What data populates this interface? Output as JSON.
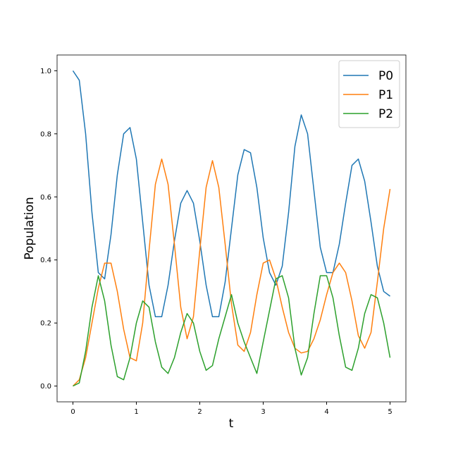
{
  "chart_data": {
    "type": "line",
    "xlabel": "t",
    "ylabel": "Population",
    "x": [
      0,
      0.1,
      0.2,
      0.3,
      0.4,
      0.5,
      0.6,
      0.7,
      0.8,
      0.9,
      1.0,
      1.1,
      1.2,
      1.3,
      1.4,
      1.5,
      1.6,
      1.7,
      1.8,
      1.9,
      2.0,
      2.1,
      2.2,
      2.3,
      2.4,
      2.5,
      2.6,
      2.7,
      2.8,
      2.9,
      3.0,
      3.1,
      3.2,
      3.3,
      3.4,
      3.5,
      3.6,
      3.7,
      3.8,
      3.9,
      4.0,
      4.1,
      4.2,
      4.3,
      4.4,
      4.5,
      4.6,
      4.7,
      4.8,
      4.9,
      5.0
    ],
    "series": [
      {
        "name": "P0",
        "color": "#1f77b4",
        "values": [
          1.0,
          0.97,
          0.8,
          0.55,
          0.36,
          0.34,
          0.48,
          0.67,
          0.8,
          0.82,
          0.72,
          0.52,
          0.32,
          0.22,
          0.22,
          0.32,
          0.46,
          0.58,
          0.62,
          0.58,
          0.46,
          0.32,
          0.22,
          0.22,
          0.33,
          0.5,
          0.67,
          0.75,
          0.74,
          0.63,
          0.47,
          0.36,
          0.32,
          0.38,
          0.55,
          0.76,
          0.86,
          0.8,
          0.62,
          0.44,
          0.36,
          0.36,
          0.45,
          0.58,
          0.7,
          0.72,
          0.65,
          0.52,
          0.38,
          0.3,
          0.285
        ]
      },
      {
        "name": "P1",
        "color": "#ff7f0e",
        "values": [
          0,
          0.02,
          0.09,
          0.2,
          0.31,
          0.39,
          0.39,
          0.3,
          0.18,
          0.09,
          0.08,
          0.2,
          0.43,
          0.64,
          0.72,
          0.64,
          0.45,
          0.25,
          0.15,
          0.22,
          0.43,
          0.63,
          0.715,
          0.63,
          0.45,
          0.26,
          0.13,
          0.11,
          0.17,
          0.29,
          0.39,
          0.4,
          0.34,
          0.25,
          0.17,
          0.12,
          0.105,
          0.11,
          0.15,
          0.21,
          0.29,
          0.36,
          0.39,
          0.36,
          0.27,
          0.16,
          0.12,
          0.17,
          0.33,
          0.5,
          0.625
        ]
      },
      {
        "name": "P2",
        "color": "#2ca02c",
        "values": [
          0,
          0.01,
          0.11,
          0.25,
          0.35,
          0.27,
          0.13,
          0.03,
          0.02,
          0.09,
          0.2,
          0.27,
          0.25,
          0.14,
          0.06,
          0.04,
          0.09,
          0.17,
          0.23,
          0.2,
          0.11,
          0.05,
          0.065,
          0.15,
          0.22,
          0.29,
          0.2,
          0.14,
          0.09,
          0.04,
          0.14,
          0.24,
          0.34,
          0.35,
          0.28,
          0.12,
          0.035,
          0.09,
          0.23,
          0.35,
          0.35,
          0.28,
          0.16,
          0.06,
          0.05,
          0.12,
          0.23,
          0.29,
          0.28,
          0.2,
          0.09
        ]
      }
    ],
    "xlim": [
      -0.25,
      5.25
    ],
    "xticks": [
      0,
      1,
      2,
      3,
      4,
      5
    ],
    "ylim": [
      -0.05,
      1.05
    ],
    "yticks": [
      {
        "value": 0,
        "label": "0.0"
      },
      0.2,
      0.4,
      0.6,
      0.8,
      {
        "value": 1,
        "label": "1.0"
      }
    ],
    "legend": "upper right"
  }
}
